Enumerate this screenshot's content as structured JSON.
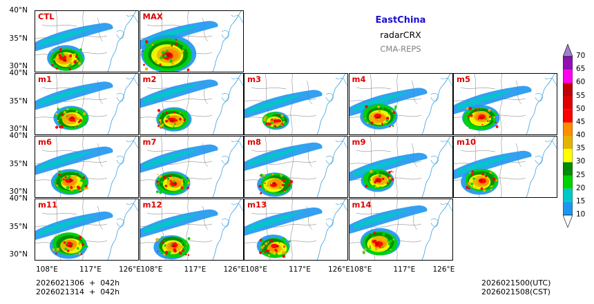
{
  "titles": {
    "region": "EastChina",
    "variable": "radarCRX",
    "model": "CMA-REPS"
  },
  "panels": [
    {
      "label": "CTL",
      "intensity": 0.85,
      "seed": 1
    },
    {
      "label": "MAX",
      "intensity": 1.25,
      "seed": 2
    },
    {
      "label": "m1",
      "intensity": 0.8,
      "seed": 3
    },
    {
      "label": "m2",
      "intensity": 0.8,
      "seed": 4
    },
    {
      "label": "m3",
      "intensity": 0.6,
      "seed": 5
    },
    {
      "label": "m4",
      "intensity": 0.85,
      "seed": 6
    },
    {
      "label": "m5",
      "intensity": 0.85,
      "seed": 7
    },
    {
      "label": "m6",
      "intensity": 0.85,
      "seed": 8
    },
    {
      "label": "m7",
      "intensity": 0.8,
      "seed": 9
    },
    {
      "label": "m8",
      "intensity": 0.8,
      "seed": 10
    },
    {
      "label": "m9",
      "intensity": 0.75,
      "seed": 11
    },
    {
      "label": "m10",
      "intensity": 0.85,
      "seed": 12
    },
    {
      "label": "m11",
      "intensity": 0.85,
      "seed": 13
    },
    {
      "label": "m12",
      "intensity": 0.8,
      "seed": 14
    },
    {
      "label": "m13",
      "intensity": 0.75,
      "seed": 15
    },
    {
      "label": "m14",
      "intensity": 0.9,
      "seed": 16
    }
  ],
  "axes": {
    "lat_labels": [
      "40°N",
      "35°N",
      "30°N"
    ],
    "lon_labels": [
      "108°E",
      "117°E",
      "126°E"
    ]
  },
  "colorbar": {
    "ticks": [
      "70",
      "65",
      "60",
      "55",
      "50",
      "45",
      "40",
      "35",
      "30",
      "25",
      "20",
      "15",
      "10"
    ],
    "colors": [
      "#1e96f0",
      "#00c8c8",
      "#00d200",
      "#008c00",
      "#ffff00",
      "#e6b400",
      "#ff8c00",
      "#ff0000",
      "#e00000",
      "#c00000",
      "#ff00f0",
      "#9010b0"
    ],
    "overflow_color": "#a080d0"
  },
  "footer": {
    "init_time": "2026021306  +  042h",
    "init_time_cst": "2026021314  +  042h",
    "valid_utc": "2026021500(UTC)",
    "valid_cst": "2026021508(CST)"
  }
}
